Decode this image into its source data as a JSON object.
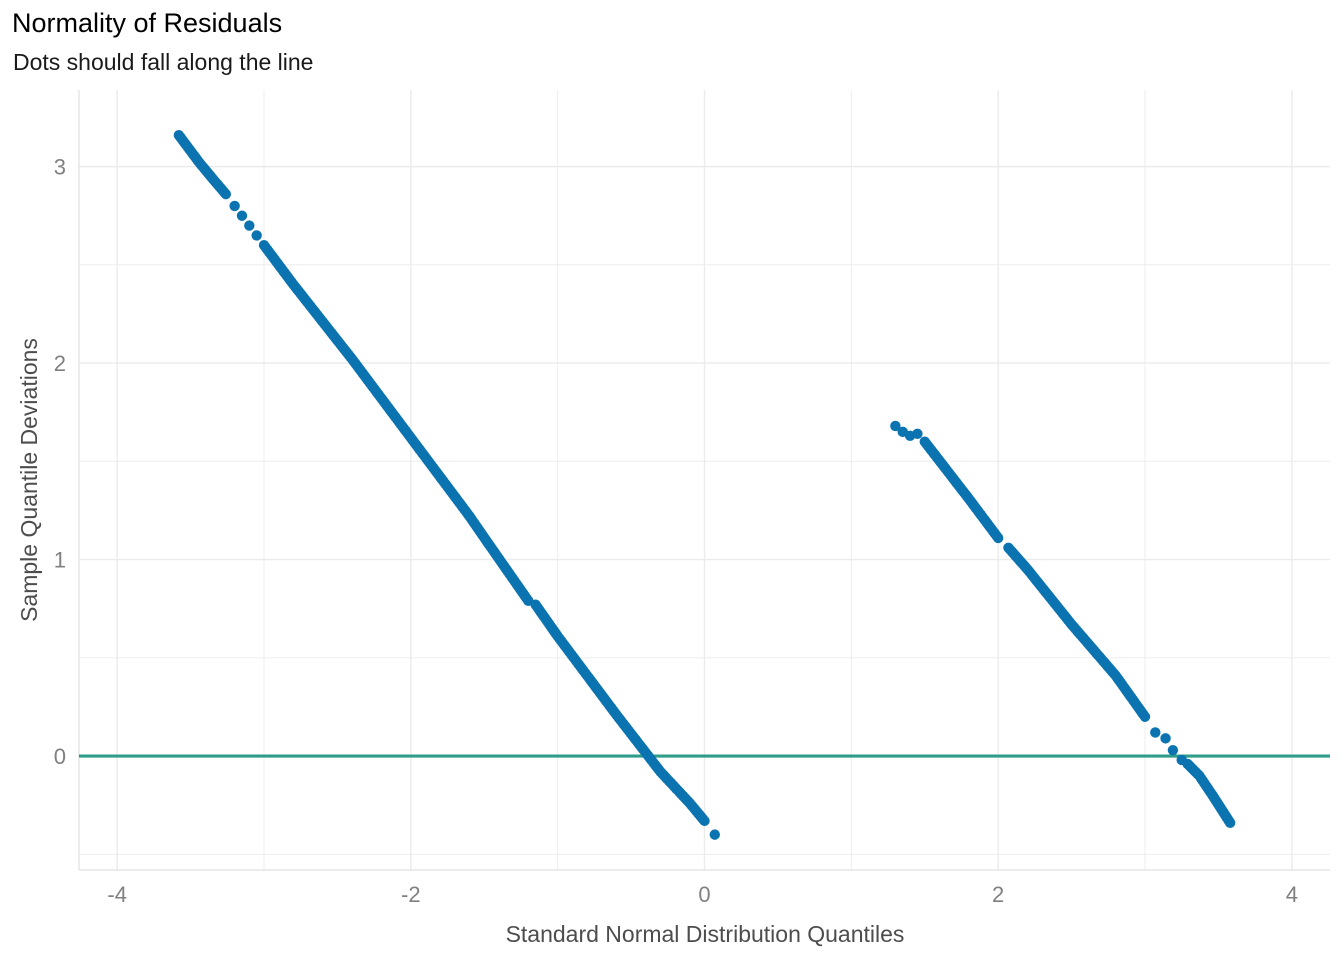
{
  "chart_data": {
    "type": "scatter",
    "title": "Normality of Residuals",
    "subtitle": "Dots should fall along the line",
    "xlabel": "Standard Normal Distribution Quantiles",
    "ylabel": "Sample Quantile Deviations",
    "xlim": [
      -4.26,
      4.26
    ],
    "ylim": [
      -0.58,
      3.39
    ],
    "x_ticks": [
      -4,
      -2,
      0,
      2,
      4
    ],
    "x_tick_labels": [
      "-4",
      "-2",
      "0",
      "2",
      "4"
    ],
    "y_ticks": [
      0,
      1,
      2,
      3
    ],
    "y_tick_labels": [
      "0",
      "1",
      "2",
      "3"
    ],
    "grid": true,
    "reference_line": {
      "y": 0,
      "color": "#2E9E8A"
    },
    "point_color": "#0A73B0",
    "series": [
      {
        "values": [
          [
            -3.58,
            3.16
          ],
          [
            -3.44,
            3.02
          ],
          [
            -3.34,
            2.93
          ],
          [
            -3.26,
            2.86
          ],
          [
            -3.2,
            2.8
          ],
          [
            -3.15,
            2.75
          ],
          [
            -3.1,
            2.7
          ],
          [
            -3.05,
            2.65
          ],
          [
            -3.0,
            2.6
          ],
          [
            -2.8,
            2.4
          ],
          [
            -2.4,
            2.02
          ],
          [
            -2.0,
            1.62
          ],
          [
            -1.6,
            1.22
          ],
          [
            -1.48,
            1.09
          ],
          [
            -1.2,
            0.79
          ],
          [
            -1.15,
            0.77
          ],
          [
            -1.0,
            0.61
          ],
          [
            -0.6,
            0.21
          ],
          [
            -0.3,
            -0.08
          ],
          [
            -0.1,
            -0.24
          ],
          [
            0.0,
            -0.33
          ],
          [
            0.07,
            -0.4
          ]
        ]
      },
      {
        "values": [
          [
            1.3,
            1.68
          ],
          [
            1.35,
            1.65
          ],
          [
            1.4,
            1.63
          ],
          [
            1.45,
            1.64
          ],
          [
            1.5,
            1.6
          ],
          [
            1.8,
            1.31
          ],
          [
            2.0,
            1.11
          ],
          [
            2.07,
            1.06
          ],
          [
            2.2,
            0.95
          ],
          [
            2.5,
            0.67
          ],
          [
            2.8,
            0.41
          ],
          [
            3.0,
            0.2
          ],
          [
            3.07,
            0.12
          ],
          [
            3.14,
            0.09
          ],
          [
            3.19,
            0.03
          ],
          [
            3.25,
            -0.02
          ],
          [
            3.29,
            -0.04
          ],
          [
            3.37,
            -0.1
          ],
          [
            3.46,
            -0.2
          ],
          [
            3.58,
            -0.34
          ]
        ]
      }
    ]
  }
}
